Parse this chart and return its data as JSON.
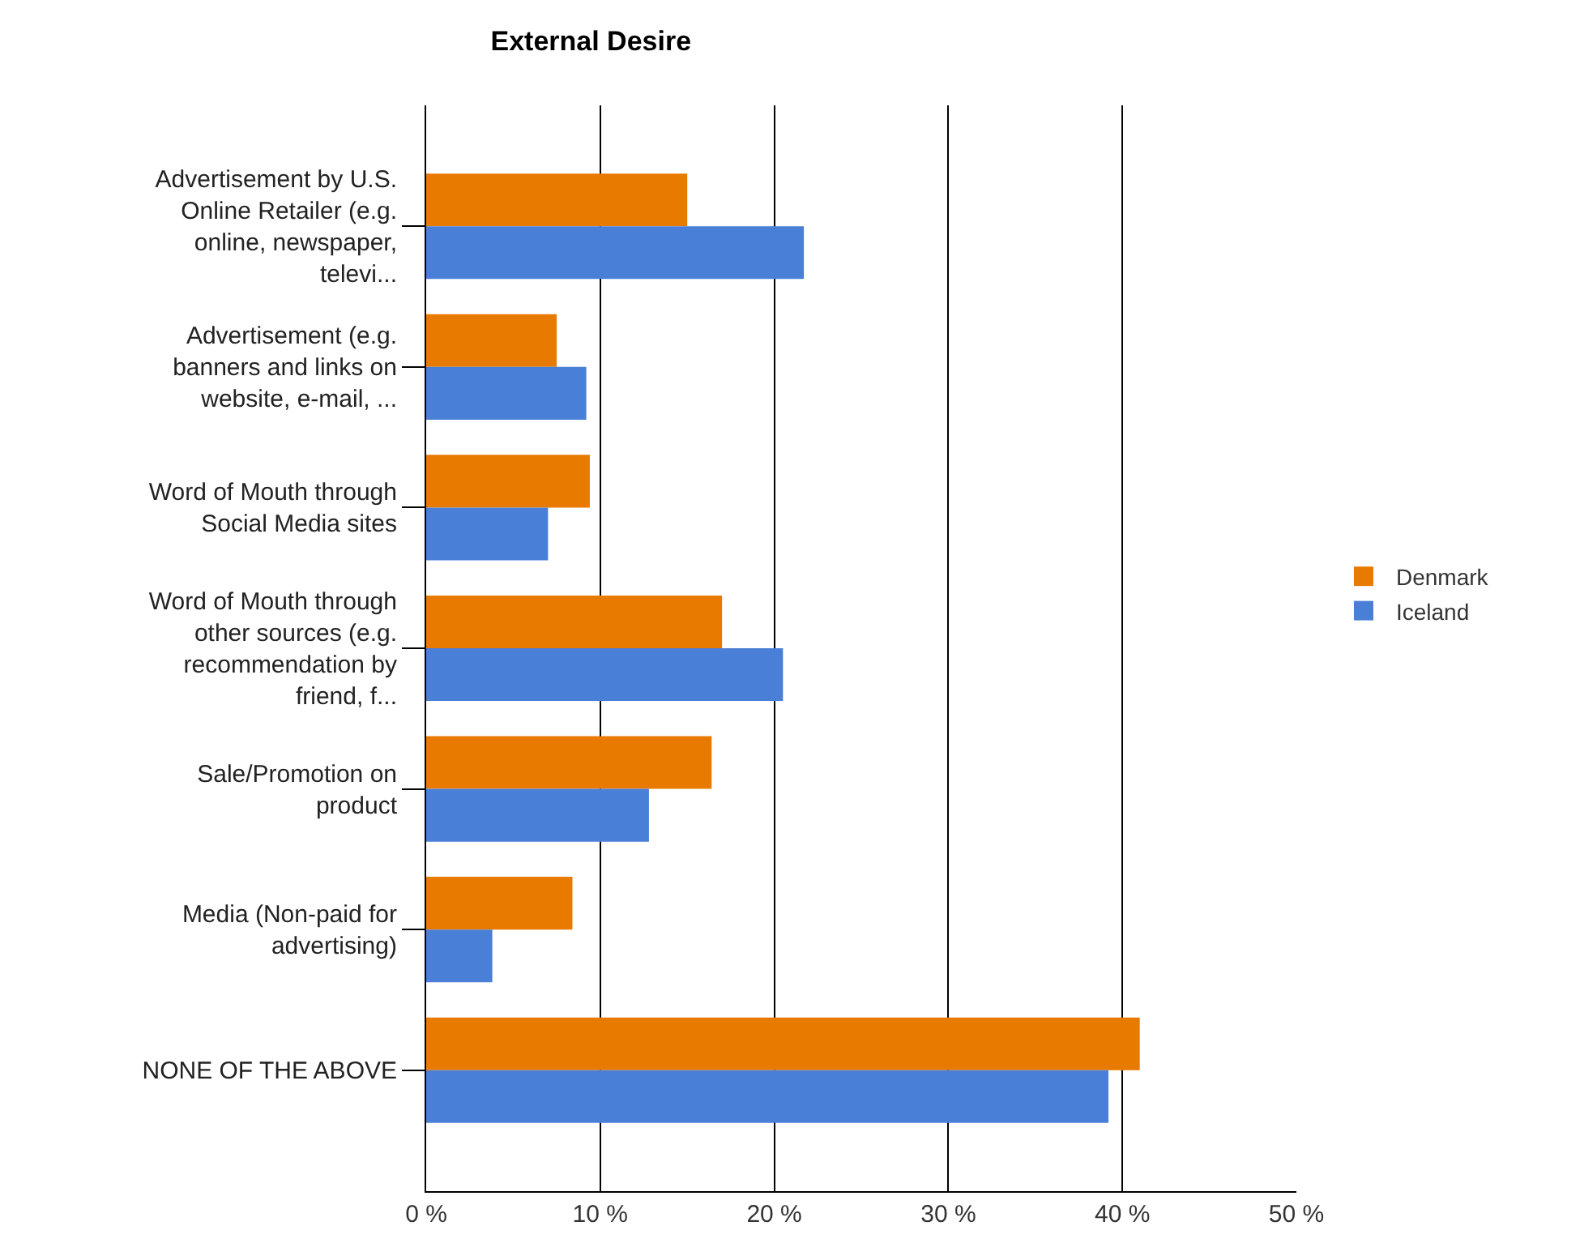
{
  "chart_data": {
    "type": "bar",
    "orientation": "horizontal",
    "title": "External Desire",
    "categories": [
      "Advertisement by U.S. Online Retailer (e.g. online, newspaper, televi...",
      "Advertisement (e.g. banners and links on website, e-mail, ...",
      "Word of Mouth through Social Media sites",
      "Word of Mouth through other sources (e.g. recommendation by friend, f...",
      "Sale/Promotion on product",
      "Media (Non-paid for advertising)",
      "NONE OF THE ABOVE"
    ],
    "series": [
      {
        "name": "Denmark",
        "color": "#e87a00",
        "values": [
          15.0,
          7.5,
          9.4,
          17.0,
          16.4,
          8.4,
          41.0
        ]
      },
      {
        "name": "Iceland",
        "color": "#4a7fd8",
        "values": [
          21.7,
          9.2,
          7.0,
          20.5,
          12.8,
          3.8,
          39.2
        ]
      }
    ],
    "xlim": [
      0,
      50
    ],
    "xticks": [
      {
        "value": 0,
        "label": "0 %"
      },
      {
        "value": 10,
        "label": "10 %"
      },
      {
        "value": 20,
        "label": "20 %"
      },
      {
        "value": 30,
        "label": "30 %"
      },
      {
        "value": 40,
        "label": "40 %"
      },
      {
        "value": 50,
        "label": "50 %"
      }
    ],
    "grid": "x",
    "legend": "right"
  }
}
